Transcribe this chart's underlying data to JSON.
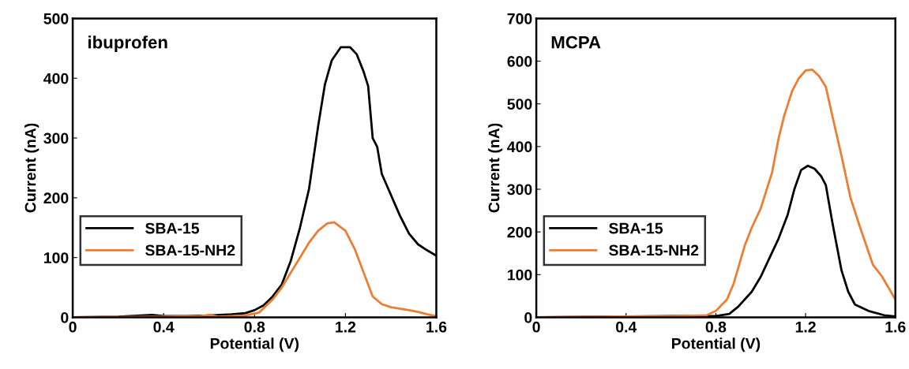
{
  "chart_data": [
    {
      "type": "line",
      "annotations": [
        "ibuprofen"
      ],
      "xlabel": "Potential (V)",
      "ylabel": "Current (nA)",
      "xlim": [
        0,
        1.6
      ],
      "xticks": [
        0,
        0.4,
        0.8,
        1.2,
        1.6
      ],
      "ylim": [
        0,
        500
      ],
      "yticks": [
        0,
        100,
        200,
        300,
        400,
        500
      ],
      "legend": "lower left",
      "grid": false,
      "marker": "none",
      "line_style": "solid",
      "series": [
        {
          "name": "SBA-15",
          "color": "#000000",
          "x": [
            0,
            0.2,
            0.35,
            0.4,
            0.5,
            0.6,
            0.7,
            0.76,
            0.8,
            0.84,
            0.88,
            0.92,
            0.96,
            1.0,
            1.04,
            1.08,
            1.11,
            1.14,
            1.18,
            1.22,
            1.25,
            1.28,
            1.3,
            1.32,
            1.34,
            1.36,
            1.4,
            1.44,
            1.48,
            1.52,
            1.56,
            1.6
          ],
          "values": [
            0,
            1,
            4,
            2,
            2,
            3,
            5,
            7,
            12,
            20,
            35,
            55,
            95,
            150,
            215,
            320,
            390,
            430,
            452,
            452,
            440,
            411,
            387,
            300,
            285,
            240,
            205,
            170,
            140,
            122,
            112,
            103
          ]
        },
        {
          "name": "SBA-15-NH2",
          "color": "#ed7d31",
          "x": [
            0,
            0.4,
            0.56,
            0.6,
            0.64,
            0.76,
            0.82,
            0.88,
            0.92,
            0.96,
            1.0,
            1.04,
            1.08,
            1.12,
            1.15,
            1.2,
            1.24,
            1.28,
            1.32,
            1.36,
            1.4,
            1.48,
            1.52,
            1.56,
            1.6
          ],
          "values": [
            0,
            1,
            2,
            4,
            1,
            3,
            8,
            30,
            50,
            75,
            100,
            125,
            145,
            157,
            159,
            145,
            115,
            75,
            35,
            22,
            17,
            12,
            9,
            5,
            2
          ]
        }
      ]
    },
    {
      "type": "line",
      "annotations": [
        "MCPA"
      ],
      "xlabel": "Potential (V)",
      "ylabel": "Current (nA)",
      "xlim": [
        0,
        1.6
      ],
      "xticks": [
        0,
        0.4,
        0.8,
        1.2,
        1.6
      ],
      "ylim": [
        0,
        700
      ],
      "yticks": [
        0,
        100,
        200,
        300,
        400,
        500,
        600,
        700
      ],
      "legend": "lower left",
      "grid": false,
      "marker": "none",
      "line_style": "solid",
      "series": [
        {
          "name": "SBA-15",
          "color": "#000000",
          "x": [
            0,
            0.6,
            0.8,
            0.86,
            0.9,
            0.96,
            1.0,
            1.04,
            1.08,
            1.12,
            1.15,
            1.18,
            1.21,
            1.24,
            1.27,
            1.29,
            1.32,
            1.36,
            1.39,
            1.42,
            1.48,
            1.55,
            1.6
          ],
          "values": [
            0,
            3,
            3,
            8,
            25,
            60,
            95,
            140,
            185,
            240,
            300,
            345,
            355,
            348,
            330,
            310,
            220,
            110,
            60,
            30,
            15,
            5,
            2
          ]
        },
        {
          "name": "SBA-15-NH2",
          "color": "#ed7d31",
          "x": [
            0,
            0.35,
            0.6,
            0.76,
            0.8,
            0.85,
            0.88,
            0.93,
            0.96,
            1.0,
            1.05,
            1.08,
            1.105,
            1.14,
            1.17,
            1.2,
            1.23,
            1.26,
            1.29,
            1.32,
            1.36,
            1.4,
            1.44,
            1.5,
            1.54,
            1.6
          ],
          "values": [
            0,
            2,
            2,
            5,
            15,
            42,
            80,
            170,
            210,
            255,
            338,
            420,
            473,
            530,
            560,
            578,
            580,
            565,
            540,
            470,
            378,
            280,
            215,
            123,
            96,
            42
          ]
        }
      ]
    }
  ]
}
